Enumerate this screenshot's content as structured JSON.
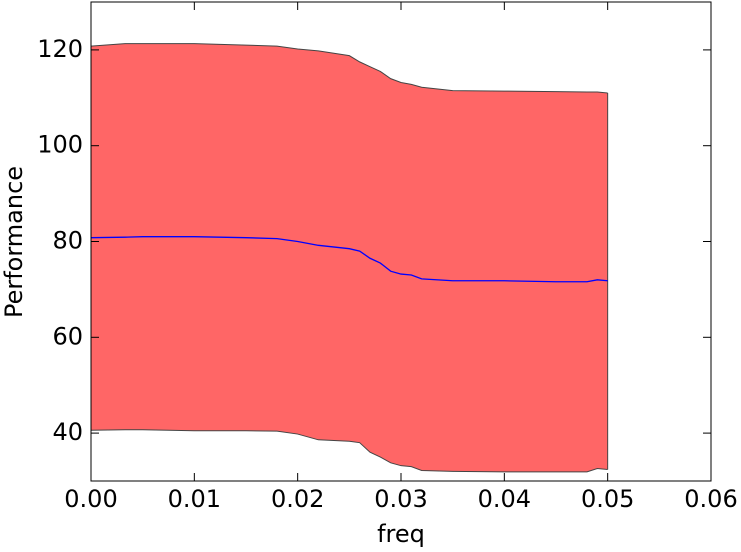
{
  "chart_data": {
    "type": "line",
    "xlabel": "freq",
    "ylabel": "Performance",
    "x": [
      0,
      0.0033,
      0.005,
      0.01,
      0.015,
      0.018,
      0.02,
      0.022,
      0.025,
      0.026,
      0.027,
      0.028,
      0.029,
      0.03,
      0.031,
      0.032,
      0.035,
      0.04,
      0.045,
      0.048,
      0.049,
      0.05
    ],
    "values": [
      80.8,
      80.9,
      81.0,
      81.0,
      80.8,
      80.6,
      80.0,
      79.2,
      78.5,
      78.0,
      76.5,
      75.5,
      73.8,
      73.2,
      73.0,
      72.2,
      71.8,
      71.8,
      71.6,
      71.6,
      72.0,
      71.8
    ],
    "upper": [
      120.8,
      121.3,
      121.3,
      121.3,
      121.0,
      120.8,
      120.2,
      119.8,
      118.8,
      117.5,
      116.5,
      115.5,
      114.0,
      113.2,
      112.8,
      112.2,
      111.5,
      111.4,
      111.3,
      111.2,
      111.2,
      111.0
    ],
    "lower": [
      40.6,
      40.7,
      40.7,
      40.5,
      40.5,
      40.4,
      39.8,
      38.6,
      38.3,
      38.0,
      36.0,
      35.0,
      33.8,
      33.2,
      33.0,
      32.2,
      32.0,
      31.9,
      31.9,
      31.9,
      32.6,
      32.4
    ],
    "color": "#0000ff",
    "band_color": "#ff6666",
    "edge_color": "#444444",
    "xlim": [
      0,
      0.06
    ],
    "xticks": [
      {
        "value": 0,
        "label": "0.00"
      },
      {
        "value": 0.01,
        "label": "0.01"
      },
      {
        "value": 0.02,
        "label": "0.02"
      },
      {
        "value": 0.03,
        "label": "0.03"
      },
      {
        "value": 0.04,
        "label": "0.04"
      },
      {
        "value": 0.05,
        "label": "0.05"
      },
      {
        "value": 0.06,
        "label": "0.06"
      }
    ],
    "ylim": [
      30,
      130
    ],
    "yticks": [
      40,
      60,
      80,
      100,
      120
    ]
  }
}
